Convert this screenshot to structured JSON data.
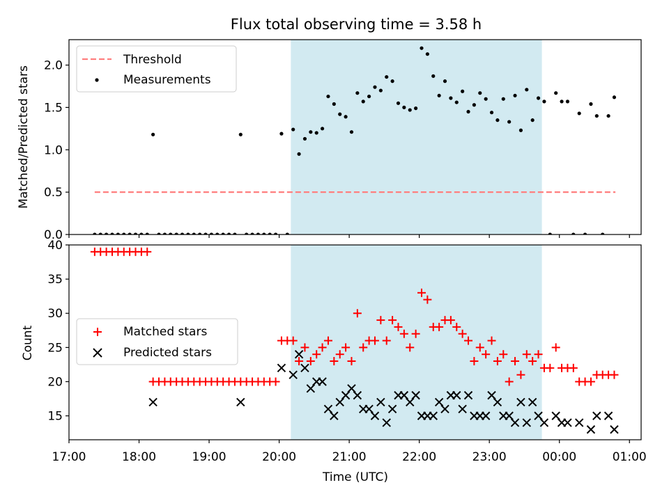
{
  "chart_data": [
    {
      "type": "scatter",
      "title": "Flux total observing time = 3.58 h",
      "xlabel": "",
      "ylabel": "Matched/Predicted stars",
      "xlim": [
        "17:00",
        "01:10"
      ],
      "ylim": [
        0,
        2.3
      ],
      "yticks": [
        0.0,
        0.5,
        1.0,
        1.5,
        2.0
      ],
      "ytick_labels": [
        "0.0",
        "0.5",
        "1.0",
        "1.5",
        "2.0"
      ],
      "shaded_region": {
        "start": "20:10",
        "end": "23:45",
        "color": "#add8e6"
      },
      "legend_position": "top-left",
      "series": [
        {
          "name": "Threshold",
          "style": "dashed-line",
          "color": "#ff7f7f",
          "points": [
            [
              "17:22",
              0.5
            ],
            [
              "00:48",
              0.5
            ]
          ]
        },
        {
          "name": "Measurements",
          "style": "dot",
          "color": "#000000",
          "points": [
            [
              "17:22",
              0
            ],
            [
              "17:27",
              0
            ],
            [
              "17:32",
              0
            ],
            [
              "17:37",
              0
            ],
            [
              "17:42",
              0
            ],
            [
              "17:47",
              0
            ],
            [
              "17:52",
              0
            ],
            [
              "17:57",
              0
            ],
            [
              "18:02",
              0
            ],
            [
              "18:07",
              0
            ],
            [
              "18:12",
              1.18
            ],
            [
              "18:17",
              0
            ],
            [
              "18:22",
              0
            ],
            [
              "18:27",
              0
            ],
            [
              "18:32",
              0
            ],
            [
              "18:37",
              0
            ],
            [
              "18:42",
              0
            ],
            [
              "18:47",
              0
            ],
            [
              "18:52",
              0
            ],
            [
              "18:57",
              0
            ],
            [
              "19:02",
              0
            ],
            [
              "19:07",
              0
            ],
            [
              "19:12",
              0
            ],
            [
              "19:17",
              0
            ],
            [
              "19:22",
              0
            ],
            [
              "19:27",
              1.18
            ],
            [
              "19:32",
              0
            ],
            [
              "19:37",
              0
            ],
            [
              "19:42",
              0
            ],
            [
              "19:47",
              0
            ],
            [
              "19:52",
              0
            ],
            [
              "19:57",
              0
            ],
            [
              "20:02",
              1.19
            ],
            [
              "20:07",
              0
            ],
            [
              "20:12",
              1.24
            ],
            [
              "20:17",
              0.95
            ],
            [
              "20:22",
              1.13
            ],
            [
              "20:27",
              1.21
            ],
            [
              "20:32",
              1.2
            ],
            [
              "20:37",
              1.25
            ],
            [
              "20:42",
              1.63
            ],
            [
              "20:47",
              1.54
            ],
            [
              "20:52",
              1.42
            ],
            [
              "20:57",
              1.39
            ],
            [
              "21:02",
              1.21
            ],
            [
              "21:07",
              1.67
            ],
            [
              "21:12",
              1.57
            ],
            [
              "21:17",
              1.63
            ],
            [
              "21:22",
              1.74
            ],
            [
              "21:27",
              1.7
            ],
            [
              "21:32",
              1.86
            ],
            [
              "21:37",
              1.81
            ],
            [
              "21:42",
              1.55
            ],
            [
              "21:47",
              1.5
            ],
            [
              "21:52",
              1.47
            ],
            [
              "21:57",
              1.49
            ],
            [
              "22:02",
              2.2
            ],
            [
              "22:07",
              2.13
            ],
            [
              "22:12",
              1.87
            ],
            [
              "22:17",
              1.64
            ],
            [
              "22:22",
              1.81
            ],
            [
              "22:27",
              1.61
            ],
            [
              "22:32",
              1.56
            ],
            [
              "22:37",
              1.69
            ],
            [
              "22:42",
              1.45
            ],
            [
              "22:47",
              1.53
            ],
            [
              "22:52",
              1.67
            ],
            [
              "22:57",
              1.6
            ],
            [
              "23:02",
              1.44
            ],
            [
              "23:07",
              1.35
            ],
            [
              "23:12",
              1.6
            ],
            [
              "23:17",
              1.33
            ],
            [
              "23:22",
              1.64
            ],
            [
              "23:27",
              1.23
            ],
            [
              "23:32",
              1.71
            ],
            [
              "23:37",
              1.35
            ],
            [
              "23:42",
              1.61
            ],
            [
              "23:47",
              1.57
            ],
            [
              "23:52",
              0
            ],
            [
              "23:57",
              1.67
            ],
            [
              "00:02",
              1.57
            ],
            [
              "00:07",
              1.57
            ],
            [
              "00:12",
              0
            ],
            [
              "00:17",
              1.43
            ],
            [
              "00:22",
              0
            ],
            [
              "00:27",
              1.54
            ],
            [
              "00:32",
              1.4
            ],
            [
              "00:37",
              0
            ],
            [
              "00:42",
              1.4
            ],
            [
              "00:47",
              1.62
            ]
          ]
        }
      ]
    },
    {
      "type": "scatter",
      "title": "",
      "xlabel": "Time (UTC)",
      "ylabel": "Count",
      "xlim": [
        "17:00",
        "01:10"
      ],
      "ylim": [
        11.5,
        40
      ],
      "yticks": [
        15,
        20,
        25,
        30,
        35,
        40
      ],
      "ytick_labels": [
        "15",
        "20",
        "25",
        "30",
        "35",
        "40"
      ],
      "xticks": [
        "17:00",
        "18:00",
        "19:00",
        "20:00",
        "21:00",
        "22:00",
        "23:00",
        "00:00",
        "01:00"
      ],
      "shaded_region": {
        "start": "20:10",
        "end": "23:45",
        "color": "#add8e6"
      },
      "legend_position": "center-left",
      "series": [
        {
          "name": "Matched stars",
          "style": "plus",
          "color": "#ff0000",
          "points": [
            [
              "17:22",
              39
            ],
            [
              "17:27",
              39
            ],
            [
              "17:32",
              39
            ],
            [
              "17:37",
              39
            ],
            [
              "17:42",
              39
            ],
            [
              "17:47",
              39
            ],
            [
              "17:52",
              39
            ],
            [
              "17:57",
              39
            ],
            [
              "18:02",
              39
            ],
            [
              "18:07",
              39
            ],
            [
              "18:12",
              20
            ],
            [
              "18:17",
              20
            ],
            [
              "18:22",
              20
            ],
            [
              "18:27",
              20
            ],
            [
              "18:32",
              20
            ],
            [
              "18:37",
              20
            ],
            [
              "18:42",
              20
            ],
            [
              "18:47",
              20
            ],
            [
              "18:52",
              20
            ],
            [
              "18:57",
              20
            ],
            [
              "19:02",
              20
            ],
            [
              "19:07",
              20
            ],
            [
              "19:12",
              20
            ],
            [
              "19:17",
              20
            ],
            [
              "19:22",
              20
            ],
            [
              "19:27",
              20
            ],
            [
              "19:32",
              20
            ],
            [
              "19:37",
              20
            ],
            [
              "19:42",
              20
            ],
            [
              "19:47",
              20
            ],
            [
              "19:52",
              20
            ],
            [
              "19:57",
              20
            ],
            [
              "20:02",
              26
            ],
            [
              "20:07",
              26
            ],
            [
              "20:12",
              26
            ],
            [
              "20:17",
              23
            ],
            [
              "20:22",
              25
            ],
            [
              "20:27",
              23
            ],
            [
              "20:32",
              24
            ],
            [
              "20:37",
              25
            ],
            [
              "20:42",
              26
            ],
            [
              "20:47",
              23
            ],
            [
              "20:52",
              24
            ],
            [
              "20:57",
              25
            ],
            [
              "21:02",
              23
            ],
            [
              "21:07",
              30
            ],
            [
              "21:12",
              25
            ],
            [
              "21:17",
              26
            ],
            [
              "21:22",
              26
            ],
            [
              "21:27",
              29
            ],
            [
              "21:32",
              26
            ],
            [
              "21:37",
              29
            ],
            [
              "21:42",
              28
            ],
            [
              "21:47",
              27
            ],
            [
              "21:52",
              25
            ],
            [
              "21:57",
              27
            ],
            [
              "22:02",
              33
            ],
            [
              "22:07",
              32
            ],
            [
              "22:12",
              28
            ],
            [
              "22:17",
              28
            ],
            [
              "22:22",
              29
            ],
            [
              "22:27",
              29
            ],
            [
              "22:32",
              28
            ],
            [
              "22:37",
              27
            ],
            [
              "22:42",
              26
            ],
            [
              "22:47",
              23
            ],
            [
              "22:52",
              25
            ],
            [
              "22:57",
              24
            ],
            [
              "23:02",
              26
            ],
            [
              "23:07",
              23
            ],
            [
              "23:12",
              24
            ],
            [
              "23:17",
              20
            ],
            [
              "23:22",
              23
            ],
            [
              "23:27",
              21
            ],
            [
              "23:32",
              24
            ],
            [
              "23:37",
              23
            ],
            [
              "23:42",
              24
            ],
            [
              "23:47",
              22
            ],
            [
              "23:52",
              22
            ],
            [
              "23:57",
              25
            ],
            [
              "00:02",
              22
            ],
            [
              "00:07",
              22
            ],
            [
              "00:12",
              22
            ],
            [
              "00:17",
              20
            ],
            [
              "00:22",
              20
            ],
            [
              "00:27",
              20
            ],
            [
              "00:32",
              21
            ],
            [
              "00:37",
              21
            ],
            [
              "00:42",
              21
            ],
            [
              "00:47",
              21
            ]
          ]
        },
        {
          "name": "Predicted stars",
          "style": "x",
          "color": "#000000",
          "points": [
            [
              "18:12",
              17
            ],
            [
              "19:27",
              17
            ],
            [
              "20:02",
              22
            ],
            [
              "20:12",
              21
            ],
            [
              "20:17",
              24
            ],
            [
              "20:22",
              22
            ],
            [
              "20:27",
              19
            ],
            [
              "20:32",
              20
            ],
            [
              "20:37",
              20
            ],
            [
              "20:42",
              16
            ],
            [
              "20:47",
              15
            ],
            [
              "20:52",
              17
            ],
            [
              "20:57",
              18
            ],
            [
              "21:02",
              19
            ],
            [
              "21:07",
              18
            ],
            [
              "21:12",
              16
            ],
            [
              "21:17",
              16
            ],
            [
              "21:22",
              15
            ],
            [
              "21:27",
              17
            ],
            [
              "21:32",
              14
            ],
            [
              "21:37",
              16
            ],
            [
              "21:42",
              18
            ],
            [
              "21:47",
              18
            ],
            [
              "21:52",
              17
            ],
            [
              "21:57",
              18
            ],
            [
              "22:02",
              15
            ],
            [
              "22:07",
              15
            ],
            [
              "22:12",
              15
            ],
            [
              "22:17",
              17
            ],
            [
              "22:22",
              16
            ],
            [
              "22:27",
              18
            ],
            [
              "22:32",
              18
            ],
            [
              "22:37",
              16
            ],
            [
              "22:42",
              18
            ],
            [
              "22:47",
              15
            ],
            [
              "22:52",
              15
            ],
            [
              "22:57",
              15
            ],
            [
              "23:02",
              18
            ],
            [
              "23:07",
              17
            ],
            [
              "23:12",
              15
            ],
            [
              "23:17",
              15
            ],
            [
              "23:22",
              14
            ],
            [
              "23:27",
              17
            ],
            [
              "23:32",
              14
            ],
            [
              "23:37",
              17
            ],
            [
              "23:42",
              15
            ],
            [
              "23:47",
              14
            ],
            [
              "23:57",
              15
            ],
            [
              "00:02",
              14
            ],
            [
              "00:07",
              14
            ],
            [
              "00:17",
              14
            ],
            [
              "00:27",
              13
            ],
            [
              "00:32",
              15
            ],
            [
              "00:42",
              15
            ],
            [
              "00:47",
              13
            ]
          ]
        }
      ]
    }
  ]
}
